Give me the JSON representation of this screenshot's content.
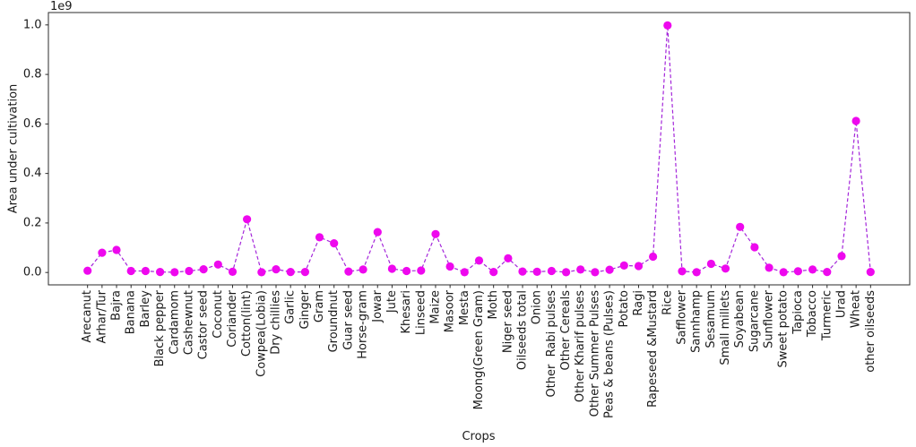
{
  "figure": {
    "offset_text": "1e9",
    "xlabel": "Crops",
    "ylabel": "Area under cultivation"
  },
  "chart_data": {
    "type": "line",
    "title": "",
    "xlabel": "Crops",
    "ylabel": "Area under cultivation",
    "y_offset_multiplier": "1e9",
    "line_style": "dashed",
    "marker": "circle",
    "marker_color": "#ee08ee",
    "line_color": "#9400d3",
    "axis_color": "#2b2b2b",
    "background": "#ffffff",
    "grid": false,
    "legend": "none",
    "ylim": [
      -0.05,
      1.05
    ],
    "yticks": [
      0.0,
      0.2,
      0.4,
      0.6,
      0.8,
      1.0
    ],
    "categories": [
      "Arecanut",
      "Arhar/Tur",
      "Bajra",
      "Banana",
      "Barley",
      "Black pepper",
      "Cardamom",
      "Cashewnut",
      "Castor seed",
      "Coconut",
      "Coriander",
      "Cotton(lint)",
      "Cowpea(Lobia)",
      "Dry chillies",
      "Garlic",
      "Ginger",
      "Gram",
      "Groundnut",
      "Guar seed",
      "Horse-gram",
      "Jowar",
      "Jute",
      "Khesari",
      "Linseed",
      "Maize",
      "Masoor",
      "Mesta",
      "Moong(Green Gram)",
      "Moth",
      "Niger seed",
      "Oilseeds total",
      "Onion",
      "Other  Rabi pulses",
      "Other Cereals",
      "Other Kharif pulses",
      "Other Summer Pulses",
      "Peas & beans (Pulses)",
      "Potato",
      "Ragi",
      "Rapeseed &Mustard",
      "Rice",
      "Safflower",
      "Sannhamp",
      "Sesamum",
      "Small millets",
      "Soyabean",
      "Sugarcane",
      "Sunflower",
      "Sweet potato",
      "Tapioca",
      "Tobacco",
      "Turmeric",
      "Urad",
      "Wheat",
      "other oilseeds"
    ],
    "values": [
      0.007,
      0.08,
      0.091,
      0.006,
      0.006,
      0.002,
      0.001,
      0.006,
      0.013,
      0.032,
      0.003,
      0.215,
      0.001,
      0.013,
      0.002,
      0.002,
      0.142,
      0.118,
      0.004,
      0.012,
      0.163,
      0.015,
      0.006,
      0.008,
      0.155,
      0.024,
      0.001,
      0.048,
      0.002,
      0.057,
      0.004,
      0.003,
      0.006,
      0.001,
      0.012,
      0.001,
      0.011,
      0.028,
      0.026,
      0.064,
      0.998,
      0.005,
      0.001,
      0.035,
      0.016,
      0.184,
      0.102,
      0.019,
      0.001,
      0.005,
      0.012,
      0.002,
      0.066,
      0.612,
      0.002
    ]
  }
}
